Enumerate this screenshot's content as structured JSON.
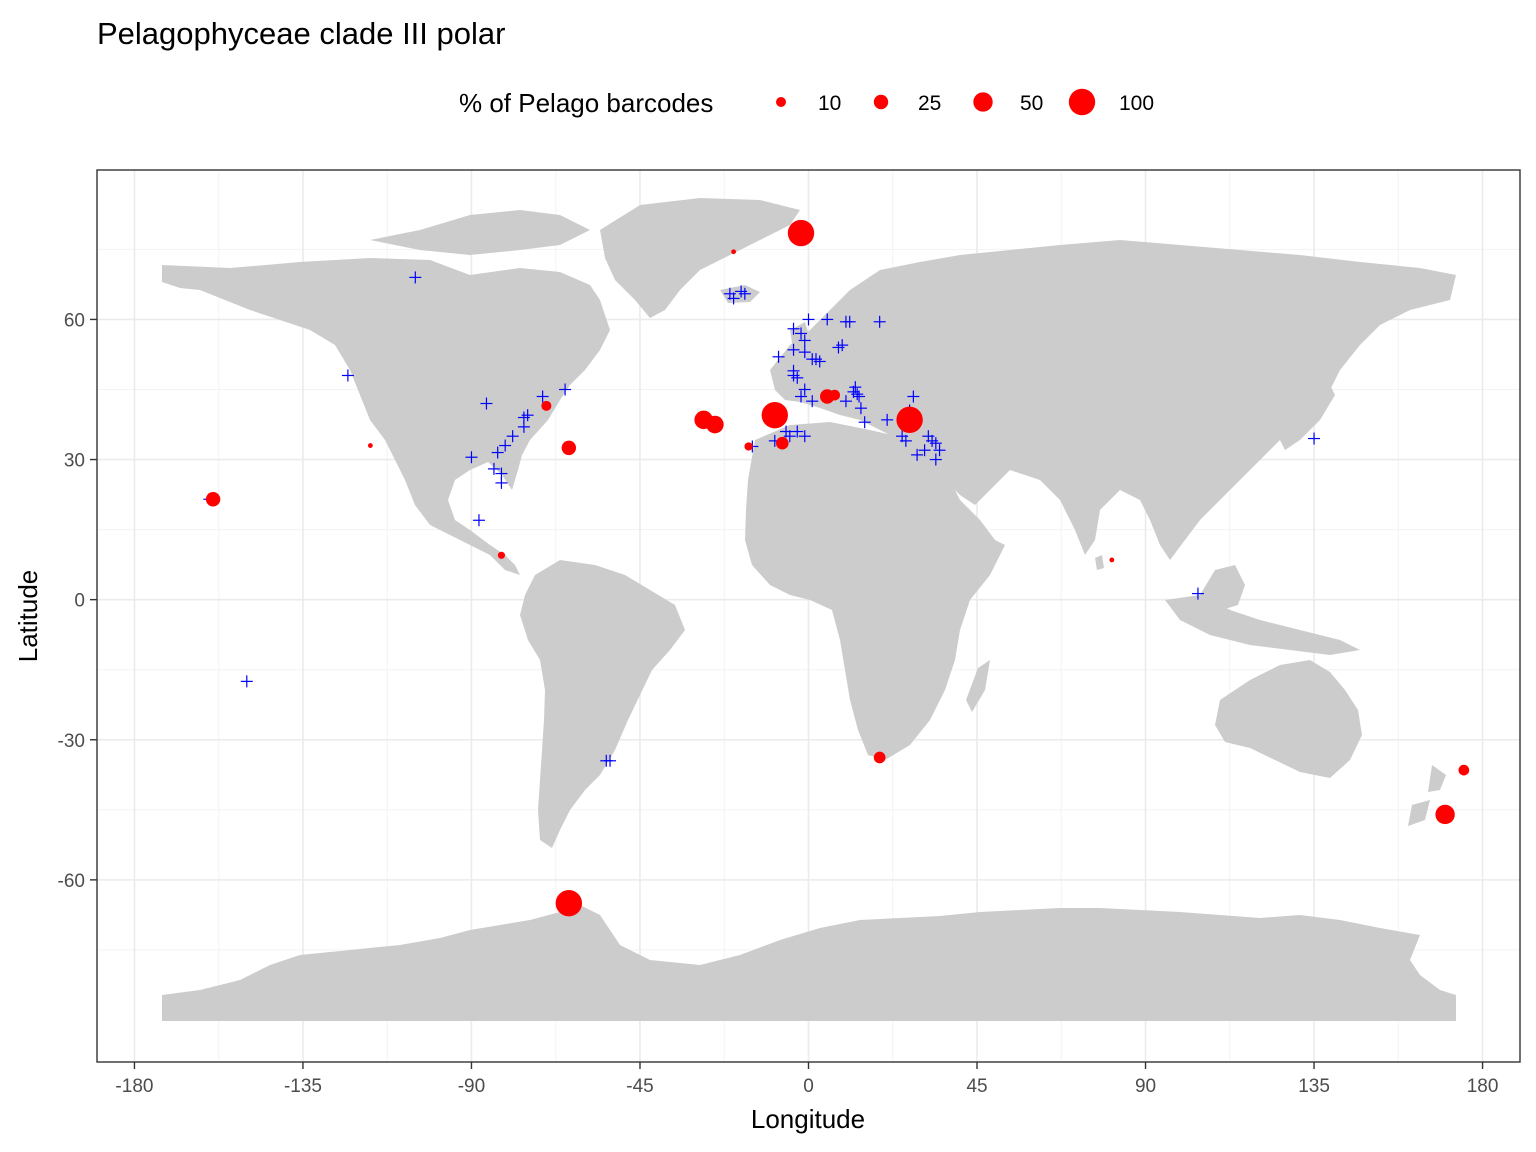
{
  "chart_data": {
    "type": "scatter",
    "title": "Pelagophyceae clade III polar",
    "xlabel": "Longitude",
    "ylabel": "Latitude",
    "xlim": [
      -190,
      190
    ],
    "ylim": [
      -99,
      92
    ],
    "x_ticks": [
      -180,
      -135,
      -90,
      -45,
      0,
      45,
      90,
      135,
      180
    ],
    "y_ticks": [
      -60,
      -30,
      0,
      30,
      60
    ],
    "grid": true,
    "legend": {
      "title": "% of Pelago barcodes",
      "placement": "top",
      "entries": [
        {
          "label": "10",
          "value": 10
        },
        {
          "label": "25",
          "value": 25
        },
        {
          "label": "50",
          "value": 50
        },
        {
          "label": "100",
          "value": 100
        }
      ]
    },
    "colors": {
      "presence": "#ff0000",
      "absence": "#0000ff",
      "land": "#cccccc"
    },
    "series": [
      {
        "marker": "circle",
        "color": "#ff0000",
        "points": [
          {
            "x": -2,
            "y": 78.5,
            "v": 100
          },
          {
            "x": -9,
            "y": 39.5,
            "v": 100
          },
          {
            "x": 27,
            "y": 38.5,
            "v": 100
          },
          {
            "x": -64,
            "y": -65,
            "v": 100
          },
          {
            "x": -28,
            "y": 38.5,
            "v": 45
          },
          {
            "x": -25,
            "y": 37.5,
            "v": 40
          },
          {
            "x": 170,
            "y": -46,
            "v": 50
          },
          {
            "x": -159,
            "y": 21.5,
            "v": 25
          },
          {
            "x": -64,
            "y": 32.5,
            "v": 25
          },
          {
            "x": 5,
            "y": 43.5,
            "v": 25
          },
          {
            "x": 7,
            "y": 43.8,
            "v": 12
          },
          {
            "x": -7,
            "y": 33.5,
            "v": 18
          },
          {
            "x": 19,
            "y": -33.8,
            "v": 15
          },
          {
            "x": 175,
            "y": -36.5,
            "v": 12
          },
          {
            "x": -70,
            "y": 41.5,
            "v": 10
          },
          {
            "x": -16,
            "y": 32.8,
            "v": 6
          },
          {
            "x": -82,
            "y": 9.5,
            "v": 4
          },
          {
            "x": -20,
            "y": 74.5,
            "v": 1
          },
          {
            "x": -117,
            "y": 33,
            "v": 1
          },
          {
            "x": 81,
            "y": 8.5,
            "v": 1
          }
        ]
      },
      {
        "marker": "cross",
        "color": "#0000ff",
        "points": [
          {
            "x": -105,
            "y": 69
          },
          {
            "x": -123,
            "y": 48
          },
          {
            "x": -86,
            "y": 42
          },
          {
            "x": -90,
            "y": 30.5
          },
          {
            "x": -88,
            "y": 17
          },
          {
            "x": -150,
            "y": -17.5
          },
          {
            "x": -160,
            "y": 21.5
          },
          {
            "x": -84,
            "y": 28
          },
          {
            "x": -82,
            "y": 27
          },
          {
            "x": -82,
            "y": 25
          },
          {
            "x": -83,
            "y": 31.5
          },
          {
            "x": -81,
            "y": 33
          },
          {
            "x": -79,
            "y": 35
          },
          {
            "x": -76,
            "y": 37
          },
          {
            "x": -76,
            "y": 39
          },
          {
            "x": -75,
            "y": 39.5
          },
          {
            "x": -71,
            "y": 43.5
          },
          {
            "x": -65,
            "y": 45
          },
          {
            "x": -54,
            "y": -34.5
          },
          {
            "x": -53,
            "y": -34.5
          },
          {
            "x": -21,
            "y": 65.5
          },
          {
            "x": -20,
            "y": 64.5
          },
          {
            "x": -18,
            "y": 66
          },
          {
            "x": -17,
            "y": 65.5
          },
          {
            "x": -4,
            "y": 58
          },
          {
            "x": -2,
            "y": 57
          },
          {
            "x": 0,
            "y": 60
          },
          {
            "x": -1,
            "y": 55.5
          },
          {
            "x": -8,
            "y": 52
          },
          {
            "x": -4,
            "y": 53.5
          },
          {
            "x": -1,
            "y": 53
          },
          {
            "x": 1,
            "y": 51.5
          },
          {
            "x": 2,
            "y": 51.5
          },
          {
            "x": 3,
            "y": 51
          },
          {
            "x": -4,
            "y": 49
          },
          {
            "x": -4,
            "y": 48
          },
          {
            "x": -3,
            "y": 47.5
          },
          {
            "x": -1,
            "y": 45
          },
          {
            "x": -2,
            "y": 43.5
          },
          {
            "x": 1,
            "y": 42.5
          },
          {
            "x": 5,
            "y": 60
          },
          {
            "x": 8,
            "y": 54
          },
          {
            "x": 9,
            "y": 54.5
          },
          {
            "x": 10,
            "y": 59.5
          },
          {
            "x": 11,
            "y": 59.5
          },
          {
            "x": 19,
            "y": 59.5
          },
          {
            "x": 12,
            "y": 44.5
          },
          {
            "x": 12.5,
            "y": 45.5
          },
          {
            "x": 13,
            "y": 44
          },
          {
            "x": 13.5,
            "y": 43.5
          },
          {
            "x": 14,
            "y": 41
          },
          {
            "x": 15,
            "y": 38
          },
          {
            "x": 10,
            "y": 42.5
          },
          {
            "x": 21,
            "y": 38.5
          },
          {
            "x": 25,
            "y": 35
          },
          {
            "x": 26,
            "y": 34
          },
          {
            "x": 27,
            "y": 40.5
          },
          {
            "x": 28,
            "y": 43.5
          },
          {
            "x": 29,
            "y": 31
          },
          {
            "x": 31,
            "y": 32
          },
          {
            "x": 32,
            "y": 35
          },
          {
            "x": 33,
            "y": 34
          },
          {
            "x": 34,
            "y": 33.5
          },
          {
            "x": 34,
            "y": 30
          },
          {
            "x": 35,
            "y": 32
          },
          {
            "x": -3,
            "y": 36
          },
          {
            "x": -6,
            "y": 36
          },
          {
            "x": -5,
            "y": 35
          },
          {
            "x": -9,
            "y": 34
          },
          {
            "x": -1,
            "y": 35
          },
          {
            "x": 104,
            "y": 1.3
          },
          {
            "x": 135,
            "y": 34.5
          },
          {
            "x": -15,
            "y": 32.8
          }
        ]
      }
    ]
  }
}
